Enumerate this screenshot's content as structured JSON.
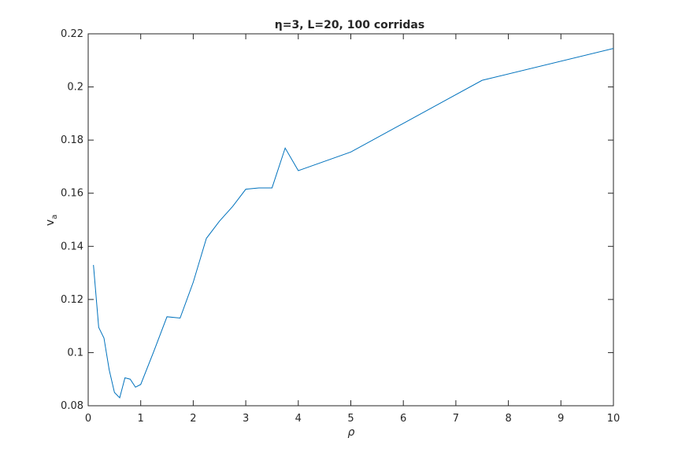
{
  "chart_data": {
    "type": "line",
    "title": "η=3, L=20, 100 corridas",
    "xlabel": "ρ",
    "ylabel": "v",
    "ylabel_subscript": "a",
    "xlim": [
      0,
      10
    ],
    "ylim": [
      0.08,
      0.22
    ],
    "x_ticks": [
      0,
      1,
      2,
      3,
      4,
      5,
      6,
      7,
      8,
      9,
      10
    ],
    "y_ticks": [
      0.08,
      0.1,
      0.12,
      0.14,
      0.16,
      0.18,
      0.2,
      0.22
    ],
    "x_tick_labels": [
      "0",
      "1",
      "2",
      "3",
      "4",
      "5",
      "6",
      "7",
      "8",
      "9",
      "10"
    ],
    "y_tick_labels": [
      "0.08",
      "0.1",
      "0.12",
      "0.14",
      "0.16",
      "0.18",
      "0.2",
      "0.22"
    ],
    "grid": false,
    "line_color": "#0072bd",
    "series": [
      {
        "x": [
          0.1,
          0.2,
          0.3,
          0.4,
          0.5,
          0.6,
          0.7,
          0.8,
          0.9,
          1.0,
          1.25,
          1.5,
          1.75,
          2.0,
          2.25,
          2.5,
          2.75,
          3.0,
          3.25,
          3.5,
          3.75,
          4.0,
          5.0,
          7.5,
          10.0
        ],
        "y": [
          0.133,
          0.1095,
          0.1055,
          0.0935,
          0.085,
          0.083,
          0.0905,
          0.09,
          0.087,
          0.088,
          0.1005,
          0.1135,
          0.113,
          0.1265,
          0.143,
          0.1495,
          0.155,
          0.1615,
          0.162,
          0.162,
          0.177,
          0.1685,
          0.1755,
          0.2025,
          0.2145
        ]
      }
    ]
  }
}
